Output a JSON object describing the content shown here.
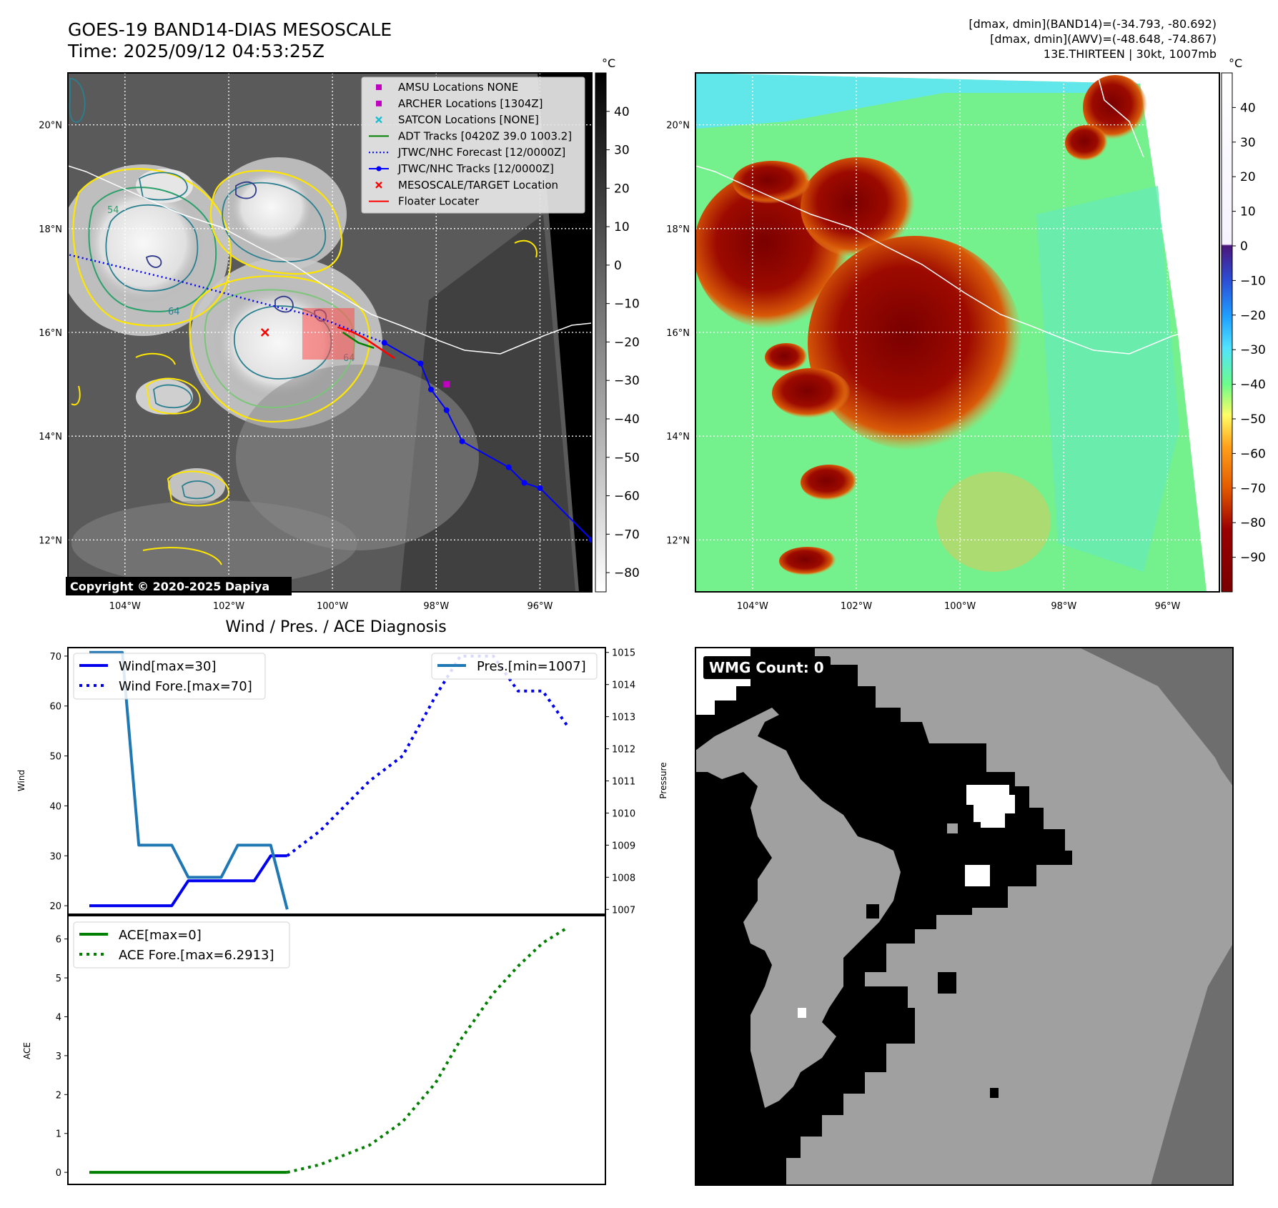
{
  "header": {
    "title_line1": "GOES-19 BAND14-DIAS MESOSCALE",
    "title_line2": "Time: 2025/09/12 04:53:25Z",
    "stats_line1": "[dmax, dmin](BAND14)=(-34.793, -80.692)",
    "stats_line2": "[dmax, dmin](AWV)=(-48.648, -74.867)",
    "stats_line3": "13E.THIRTEEN | 30kt, 1007mb"
  },
  "map": {
    "lat_labels": [
      "20°N",
      "18°N",
      "16°N",
      "14°N",
      "12°N"
    ],
    "lat_values": [
      20,
      18,
      16,
      14,
      12
    ],
    "lon_labels": [
      "104°W",
      "102°W",
      "100°W",
      "98°W",
      "96°W"
    ],
    "lon_values": [
      -104,
      -102,
      -100,
      -98,
      -96
    ],
    "extent": {
      "lon_min": -105.1,
      "lon_max": -95.0,
      "lat_min": 11.0,
      "lat_max": 21.0
    },
    "copyright": "Copyright © 2020-2025 Dapiya",
    "contour_labels": [
      "54",
      "64",
      "64"
    ],
    "legend": [
      {
        "label": "AMSU Locations NONE",
        "marker": "square",
        "color": "#c000c0"
      },
      {
        "label": "ARCHER Locations [1304Z]",
        "marker": "square",
        "color": "#c000c0"
      },
      {
        "label": "SATCON Locations [NONE]",
        "marker": "x",
        "color": "#17becf"
      },
      {
        "label": "ADT Tracks [0420Z 39.0 1003.2]",
        "marker": "line",
        "color": "#008000"
      },
      {
        "label": "JTWC/NHC Forecast [12/0000Z]",
        "marker": "dotted",
        "color": "#0000ff"
      },
      {
        "label": "JTWC/NHC Tracks [12/0000Z]",
        "marker": "line-dot",
        "color": "#0000ff"
      },
      {
        "label": "MESOSCALE/TARGET Location",
        "marker": "x",
        "color": "#ff0000"
      },
      {
        "label": "Floater Locater",
        "marker": "line",
        "color": "#ff0000"
      }
    ],
    "track_best": [
      [
        -95.0,
        12.0
      ],
      [
        -96.0,
        13.0
      ],
      [
        -96.3,
        13.1
      ],
      [
        -96.6,
        13.4
      ],
      [
        -97.5,
        13.9
      ],
      [
        -97.8,
        14.5
      ],
      [
        -98.1,
        14.9
      ],
      [
        -98.3,
        15.4
      ],
      [
        -99.0,
        15.8
      ]
    ],
    "track_forecast": [
      [
        -99.0,
        15.8
      ],
      [
        -100.3,
        16.3
      ],
      [
        -101.5,
        16.6
      ],
      [
        -103.0,
        17.0
      ],
      [
        -105.1,
        17.5
      ]
    ],
    "adt_track": [
      [
        -99.2,
        15.7
      ],
      [
        -99.5,
        15.8
      ],
      [
        -99.8,
        16.0
      ]
    ],
    "floater_track": [
      [
        -98.8,
        15.5
      ],
      [
        -99.1,
        15.7
      ],
      [
        -99.4,
        15.9
      ],
      [
        -99.6,
        16.0
      ],
      [
        -99.9,
        16.1
      ]
    ],
    "archer_point": [
      -97.8,
      15.0
    ],
    "target_point": [
      -101.3,
      16.0
    ]
  },
  "colorbar_left": {
    "unit": "°C",
    "ticks": [
      "40",
      "30",
      "20",
      "10",
      "0",
      "−10",
      "−20",
      "−30",
      "−40",
      "−50",
      "−60",
      "−70",
      "−80"
    ],
    "tick_values": [
      40,
      30,
      20,
      10,
      0,
      -10,
      -20,
      -30,
      -40,
      -50,
      -60,
      -70,
      -80
    ],
    "range": [
      -85,
      50
    ]
  },
  "colorbar_right": {
    "unit": "°C",
    "ticks": [
      "40",
      "30",
      "20",
      "10",
      "0",
      "−10",
      "−20",
      "−30",
      "−40",
      "−50",
      "−60",
      "−70",
      "−80",
      "−90"
    ],
    "tick_values": [
      40,
      30,
      20,
      10,
      0,
      -10,
      -20,
      -30,
      -40,
      -50,
      -60,
      -70,
      -80,
      -90
    ],
    "range": [
      -100,
      50
    ]
  },
  "wmg": {
    "label": "WMG Count: 0",
    "colors": {
      "white": "#ffffff",
      "black": "#000000",
      "light": "#a0a0a0",
      "dark": "#6e6e6e"
    }
  },
  "chart_data": [
    {
      "type": "line",
      "title": "Wind / Pres. / ACE Diagnosis",
      "ylabel": "Wind",
      "y2label": "Pressure",
      "ylim": [
        18.3,
        71.7
      ],
      "y2lim": [
        1006.85,
        1015.15
      ],
      "yticks": [
        20,
        30,
        40,
        50,
        60,
        70
      ],
      "y2ticks": [
        1007,
        1008,
        1009,
        1010,
        1011,
        1012,
        1013,
        1014,
        1015
      ],
      "xlim": [
        -1.3,
        31.3
      ],
      "legend_left": [
        "Wind[max=30]",
        "Wind Fore.[max=70]"
      ],
      "legend_right": [
        "Pres.[min=1007]"
      ],
      "series": [
        {
          "name": "Wind[max=30]",
          "axis": "left",
          "style": "solid",
          "color": "#0000ee",
          "x": [
            0,
            5,
            6,
            10,
            11,
            12
          ],
          "y": [
            20,
            20,
            25,
            25,
            30,
            30
          ]
        },
        {
          "name": "Wind Fore.[max=70]",
          "axis": "left",
          "style": "dotted",
          "color": "#0000ee",
          "x": [
            12,
            14,
            17,
            19,
            21,
            22.5,
            24.5,
            26,
            27.5,
            29
          ],
          "y": [
            30,
            35,
            45,
            50,
            62,
            70,
            70,
            63,
            63,
            56
          ]
        },
        {
          "name": "Pres.[min=1007]",
          "axis": "right",
          "style": "solid",
          "color": "#1f77b4",
          "x": [
            0,
            2,
            3,
            5,
            6,
            8,
            9,
            11,
            12
          ],
          "y": [
            1015,
            1015,
            1009,
            1009,
            1008,
            1008,
            1009,
            1009,
            1007
          ]
        }
      ]
    },
    {
      "type": "line",
      "ylabel": "ACE",
      "ylim": [
        -0.31,
        6.6
      ],
      "yticks": [
        0,
        1,
        2,
        3,
        4,
        5,
        6
      ],
      "xlim": [
        -1.3,
        31.3
      ],
      "legend": [
        "ACE[max=0]",
        "ACE Fore.[max=6.2913]"
      ],
      "series": [
        {
          "name": "ACE[max=0]",
          "style": "solid",
          "color": "#007f00",
          "x": [
            0,
            12
          ],
          "y": [
            0,
            0
          ]
        },
        {
          "name": "ACE Fore.[max=6.2913]",
          "style": "dotted",
          "color": "#007f00",
          "x": [
            12,
            14,
            17,
            19,
            21,
            22.5,
            24.5,
            26,
            27.5,
            29
          ],
          "y": [
            0,
            0.2,
            0.7,
            1.3,
            2.3,
            3.4,
            4.6,
            5.3,
            5.9,
            6.2913
          ]
        }
      ]
    }
  ]
}
